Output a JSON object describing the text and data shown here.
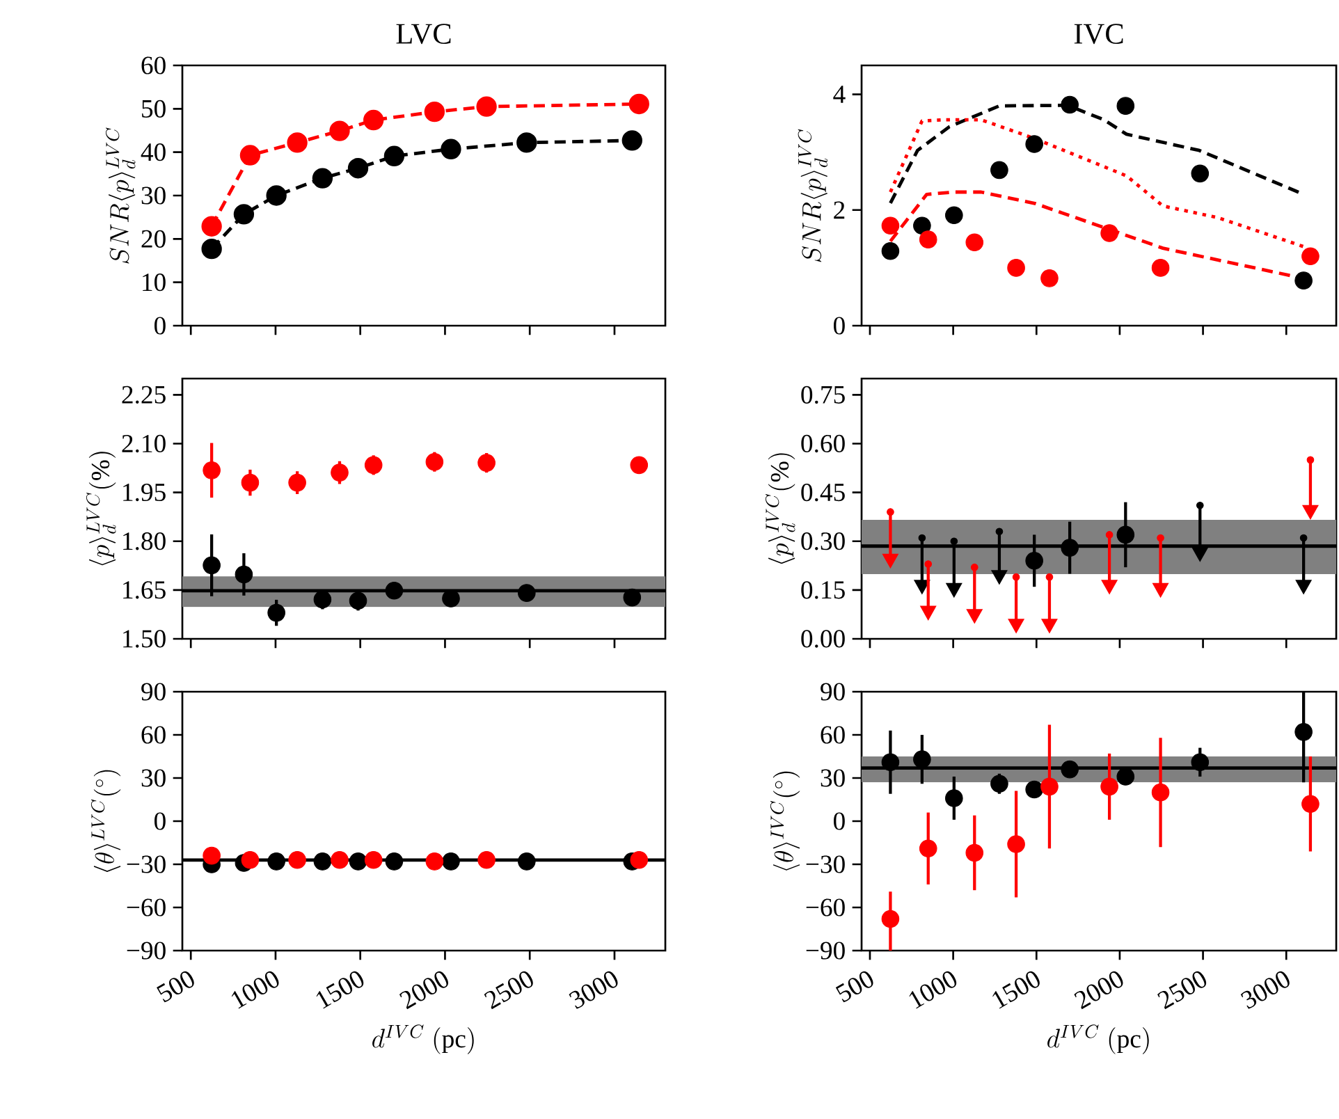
{
  "chart_data": [
    {
      "type": "line",
      "title": "LVC",
      "ylabel": "SNR\\langle p\\rangle_d^{LVC}",
      "xlim": [
        450,
        3300
      ],
      "xticks": [
        500,
        1000,
        1500,
        2000,
        2500,
        3000
      ],
      "ylim": [
        0,
        60
      ],
      "yticks": [
        0,
        10,
        20,
        30,
        40,
        50,
        60
      ],
      "tick_labels": "y",
      "series": [
        {
          "color": "#000000",
          "marker": "circle",
          "line_style": "dashed",
          "x": [
            623,
            813,
            1005,
            1277,
            1487,
            1700,
            2035,
            2482,
            3104
          ],
          "values": [
            17.7,
            25.7,
            30.0,
            34.0,
            36.3,
            39.1,
            40.7,
            42.2,
            42.7
          ]
        },
        {
          "color": "#ff0000",
          "marker": "circle",
          "line_style": "dashed",
          "x": [
            623,
            850,
            1128,
            1378,
            1578,
            1938,
            2245,
            3145
          ],
          "values": [
            22.9,
            39.3,
            42.2,
            44.9,
            47.4,
            49.3,
            50.5,
            51.1
          ]
        }
      ]
    },
    {
      "type": "scatter",
      "title": "IVC",
      "ylabel": "SNR\\langle p\\rangle_d^{IVC}",
      "xlim": [
        450,
        3300
      ],
      "xticks": [
        500,
        1000,
        1500,
        2000,
        2500,
        3000
      ],
      "ylim": [
        0,
        4.5
      ],
      "yticks": [
        0,
        2,
        4
      ],
      "tick_labels": "y",
      "series": [
        {
          "type": "line",
          "color": "#000000",
          "line_style": "dashed",
          "x": [
            623,
            786,
            977,
            1277,
            1687,
            1905,
            2041,
            2478,
            3105
          ],
          "values": [
            2.12,
            3.03,
            3.44,
            3.8,
            3.81,
            3.56,
            3.31,
            3.03,
            2.27
          ]
        },
        {
          "type": "line",
          "color": "#ff0000",
          "line_style": "dotted",
          "x": [
            623,
            813,
            950,
            1168,
            1495,
            2041,
            2259,
            2587,
            3132
          ],
          "values": [
            2.31,
            3.54,
            3.56,
            3.56,
            3.23,
            2.59,
            2.07,
            1.87,
            1.34
          ]
        },
        {
          "type": "line",
          "color": "#ff0000",
          "line_style": "dashed",
          "x": [
            623,
            841,
            1005,
            1168,
            1495,
            1932,
            2259,
            3132
          ],
          "values": [
            1.46,
            2.27,
            2.31,
            2.31,
            2.11,
            1.67,
            1.34,
            0.8
          ]
        },
        {
          "color": "#000000",
          "marker": "circle",
          "x": [
            623,
            813,
            1005,
            1277,
            1487,
            1700,
            2035,
            2482,
            3104
          ],
          "values": [
            1.29,
            1.73,
            1.91,
            2.69,
            3.14,
            3.82,
            3.8,
            2.63,
            0.78
          ]
        },
        {
          "color": "#ff0000",
          "marker": "circle",
          "x": [
            623,
            850,
            1128,
            1378,
            1578,
            1938,
            2245,
            3145
          ],
          "values": [
            1.73,
            1.49,
            1.44,
            1.0,
            0.82,
            1.6,
            1.0,
            1.2
          ]
        }
      ]
    },
    {
      "type": "scatter",
      "ylabel": "\\langle p\\rangle_d^{LVC}(\\%)",
      "xlim": [
        450,
        3300
      ],
      "xticks": [
        500,
        1000,
        1500,
        2000,
        2500,
        3000
      ],
      "ylim": [
        1.5,
        2.3
      ],
      "tick_labels": "y",
      "yticks": [
        {
          "value": 1.5,
          "label": "1.50"
        },
        {
          "value": 1.65,
          "label": "1.65"
        },
        {
          "value": 1.8,
          "label": "1.80"
        },
        {
          "value": 1.95,
          "label": "1.95"
        },
        {
          "value": 2.1,
          "label": "2.10"
        },
        {
          "value": 2.25,
          "label": "2.25"
        }
      ],
      "bands": [
        {
          "axis": "y",
          "from": 1.598,
          "to": 1.692,
          "color": "#808080"
        }
      ],
      "ref_lines": [
        {
          "axis": "y",
          "value": 1.648,
          "color": "#000000"
        }
      ],
      "series": [
        {
          "color": "#000000",
          "marker": "circle",
          "x": [
            623,
            813,
            1005,
            1277,
            1487,
            1700,
            2035,
            2482,
            3104
          ],
          "values": [
            1.726,
            1.698,
            1.58,
            1.621,
            1.617,
            1.648,
            1.624,
            1.641,
            1.627
          ],
          "errors": [
            0.095,
            0.065,
            0.04,
            0.03,
            0.03,
            0.02,
            0.02,
            0.02,
            0.02
          ]
        },
        {
          "color": "#ff0000",
          "marker": "circle",
          "x": [
            623,
            850,
            1128,
            1378,
            1578,
            1938,
            2245,
            3145
          ],
          "values": [
            2.018,
            1.98,
            1.98,
            2.011,
            2.034,
            2.044,
            2.041,
            2.034
          ],
          "errors": [
            0.084,
            0.04,
            0.035,
            0.035,
            0.03,
            0.03,
            0.03,
            0.02
          ]
        }
      ]
    },
    {
      "type": "scatter",
      "ylabel": "\\langle p\\rangle_d^{IVC}(\\%)",
      "xlim": [
        450,
        3300
      ],
      "xticks": [
        500,
        1000,
        1500,
        2000,
        2500,
        3000
      ],
      "ylim": [
        0,
        0.8
      ],
      "tick_labels": "y",
      "yticks": [
        {
          "value": 0,
          "label": "0.00"
        },
        {
          "value": 0.15,
          "label": "0.15"
        },
        {
          "value": 0.3,
          "label": "0.30"
        },
        {
          "value": 0.45,
          "label": "0.45"
        },
        {
          "value": 0.6,
          "label": "0.60"
        },
        {
          "value": 0.75,
          "label": "0.75"
        }
      ],
      "bands": [
        {
          "axis": "y",
          "from": 0.199,
          "to": 0.366,
          "color": "#808080"
        }
      ],
      "ref_lines": [
        {
          "axis": "y",
          "value": 0.285,
          "color": "#000000"
        }
      ],
      "series": [
        {
          "color": "#000000",
          "marker": "circle",
          "x": [
            1487,
            1700,
            2035
          ],
          "values": [
            0.24,
            0.28,
            0.32
          ],
          "errors": [
            0.08,
            0.08,
            0.1
          ]
        },
        {
          "color": "#000000",
          "marker": "circle",
          "x": [
            813,
            1005,
            1277,
            2482,
            3104
          ],
          "values": [
            0.31,
            0.3,
            0.33,
            0.41,
            0.31
          ],
          "errors": [
            [
              0.17,
              0.31
            ],
            [
              0.16,
              0.3
            ],
            [
              0.2,
              0.33
            ],
            [
              0.27,
              0.41
            ],
            [
              0.17,
              0.31
            ]
          ]
        },
        {
          "color": "#ff0000",
          "marker": "circle",
          "x": [
            623,
            850,
            1128,
            1378,
            1578,
            1938,
            2245,
            3145
          ],
          "values": [
            0.39,
            0.23,
            0.22,
            0.19,
            0.19,
            0.32,
            0.31,
            0.55
          ],
          "errors": [
            [
              0.25,
              0.39
            ],
            [
              0.09,
              0.23
            ],
            [
              0.08,
              0.22
            ],
            [
              0.05,
              0.19
            ],
            [
              0.05,
              0.19
            ],
            [
              0.17,
              0.32
            ],
            [
              0.16,
              0.31
            ],
            [
              0.4,
              0.55
            ]
          ]
        }
      ]
    },
    {
      "type": "scatter",
      "ylabel": "\\langle\\theta\\rangle^{LVC}(^\\circ)",
      "xlabel": "d^{IVC}~\\mathrm{(pc)}",
      "xlim": [
        450,
        3300
      ],
      "xticks": [
        500,
        1000,
        1500,
        2000,
        2500,
        3000
      ],
      "ylim": [
        -90,
        90
      ],
      "yticks": [
        {
          "value": -90,
          "label": "−90"
        },
        {
          "value": -60,
          "label": "−60"
        },
        {
          "value": -30,
          "label": "−30"
        },
        0,
        30,
        60,
        90
      ],
      "ref_lines": [
        {
          "axis": "y",
          "value": -27,
          "color": "#000000"
        }
      ],
      "series": [
        {
          "color": "#000000",
          "marker": "circle",
          "x": [
            623,
            813,
            1005,
            1277,
            1487,
            1700,
            2035,
            2482,
            3104
          ],
          "values": [
            -30,
            -29,
            -28,
            -28,
            -28,
            -28,
            -28,
            -28,
            -28
          ]
        },
        {
          "color": "#ff0000",
          "marker": "circle",
          "x": [
            623,
            850,
            1128,
            1378,
            1578,
            1938,
            2245,
            3145
          ],
          "values": [
            -24,
            -27,
            -27,
            -27,
            -27,
            -28,
            -27,
            -27
          ]
        }
      ]
    },
    {
      "type": "scatter",
      "ylabel": "\\langle\\theta\\rangle^{IVC}(^\\circ)",
      "xlabel": "d^{IVC}~\\mathrm{(pc)}",
      "xlim": [
        450,
        3300
      ],
      "xticks": [
        500,
        1000,
        1500,
        2000,
        2500,
        3000
      ],
      "ylim": [
        -90,
        90
      ],
      "yticks": [
        {
          "value": -90,
          "label": "−90"
        },
        {
          "value": -60,
          "label": "−60"
        },
        {
          "value": -30,
          "label": "−30"
        },
        0,
        30,
        60,
        90
      ],
      "bands": [
        {
          "axis": "y",
          "from": 27,
          "to": 45,
          "color": "#808080"
        }
      ],
      "ref_lines": [
        {
          "axis": "y",
          "value": 37,
          "color": "#000000"
        }
      ],
      "series": [
        {
          "color": "#000000",
          "marker": "circle",
          "x": [
            623,
            813,
            1005,
            1277,
            1487,
            1700,
            2035,
            2482,
            3104
          ],
          "values": [
            41,
            43,
            16,
            26,
            22,
            36,
            31,
            41,
            62
          ],
          "errors": [
            22,
            17,
            15,
            7,
            6,
            3,
            3,
            10,
            [
              27,
              90
            ]
          ]
        },
        {
          "color": "#ff0000",
          "marker": "circle",
          "x": [
            623,
            850,
            1128,
            1378,
            1578,
            1938,
            2245,
            3145
          ],
          "values": [
            -68,
            -19,
            -22,
            -16,
            24,
            24,
            20,
            12
          ],
          "errors": [
            [
              -90,
              -49
            ],
            25,
            26,
            37,
            43,
            23,
            38,
            33
          ]
        }
      ]
    }
  ]
}
